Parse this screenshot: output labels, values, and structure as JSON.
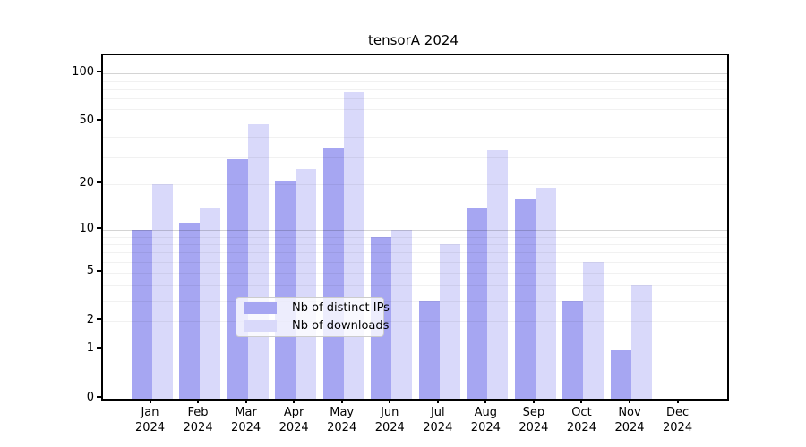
{
  "chart_data": {
    "type": "bar",
    "title": "tensorA 2024",
    "categories": [
      "Jan 2024",
      "Feb 2024",
      "Mar 2024",
      "Apr 2024",
      "May 2024",
      "Jun 2024",
      "Jul 2024",
      "Aug 2024",
      "Sep 2024",
      "Oct 2024",
      "Nov 2024",
      "Dec 2024"
    ],
    "series": [
      {
        "name": "Nb of distinct IPs",
        "color": "#a6a6f2",
        "values": [
          10,
          11,
          29,
          21,
          34,
          9,
          3,
          14,
          16,
          3,
          1,
          0
        ]
      },
      {
        "name": "Nb of downloads",
        "color": "#d9d9fa",
        "values": [
          20,
          14,
          48,
          25,
          77,
          10,
          8,
          33,
          19,
          6,
          4,
          0
        ]
      }
    ],
    "xlabel": "",
    "ylabel": "",
    "yscale": "log1p",
    "ylim": [
      0,
      130
    ],
    "yticks": [
      0,
      1,
      2,
      5,
      10,
      20,
      50,
      100
    ],
    "grid": "horizontal",
    "gridlines_major": [
      1,
      10,
      100
    ],
    "gridlines_minor": [
      2,
      3,
      4,
      5,
      6,
      7,
      8,
      9,
      20,
      30,
      40,
      50,
      60,
      70,
      80,
      90
    ],
    "legend_position": "lower center"
  }
}
